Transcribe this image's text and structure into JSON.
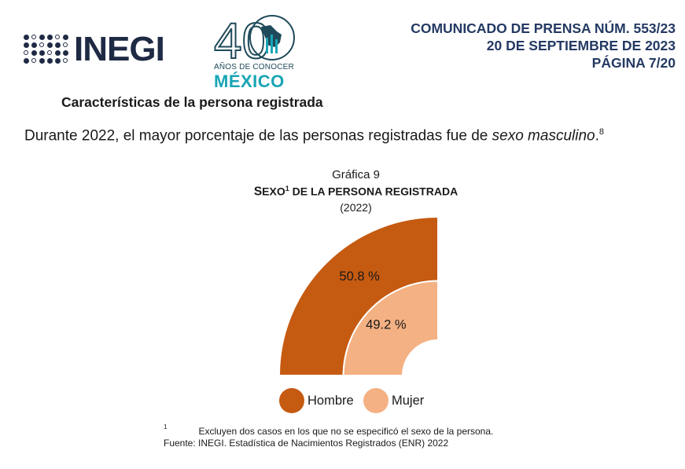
{
  "header": {
    "logo_text": "INEGI",
    "anniversary": {
      "number": "40",
      "line1": "AÑOS DE CONOCER",
      "line2": "MÉXICO"
    },
    "press_release": {
      "line1": "COMUNICADO DE PRENSA NÚM. 553/23",
      "line2": "20 DE SEPTIEMBRE DE 2023",
      "line3": "PÁGINA 7/20"
    }
  },
  "section_title": "Características de la persona registrada",
  "intro": {
    "text": "Durante 2022, el mayor porcentaje de las personas registradas fue de ",
    "emphasis": "sexo masculino",
    "suffix": ".",
    "footnote_ref": "8"
  },
  "chart_data": {
    "type": "pie",
    "figure_label": "Gráfica 9",
    "title_first": "S",
    "title_smallcaps": "EXO",
    "title_sup": "1",
    "title_rest": " DE LA PERSONA REGISTRADA",
    "subtitle": "(2022)",
    "categories": [
      "Hombre",
      "Mujer"
    ],
    "values": [
      50.8,
      49.2
    ],
    "value_labels": [
      "50.8 %",
      "49.2 %"
    ],
    "colors": [
      "#c55a11",
      "#f4b183"
    ],
    "legend_position": "bottom"
  },
  "footnotes": {
    "note1_marker": "1",
    "note1_text": "Excluyen dos casos en los que no se especificó el sexo de la persona.",
    "source": "Fuente: INEGI. Estadística de Nacimientos Registrados (ENR) 2022"
  }
}
